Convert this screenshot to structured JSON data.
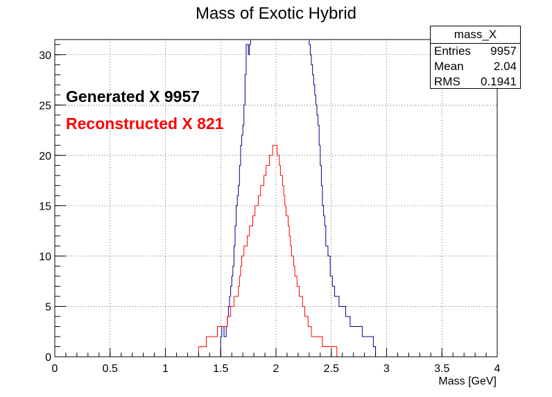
{
  "chart_data": {
    "type": "histogram",
    "title": "Mass of Exotic Hybrid",
    "xlabel": "Mass [GeV]",
    "ylabel": "",
    "xlim": [
      0,
      4
    ],
    "ylim": [
      0,
      31.5
    ],
    "xticks": [
      "0",
      "0.5",
      "1",
      "1.5",
      "2",
      "2.5",
      "3",
      "3.5",
      "4"
    ],
    "yticks": [
      "0",
      "5",
      "10",
      "15",
      "20",
      "25",
      "30"
    ],
    "grid": true,
    "bin_width": 0.01,
    "series": [
      {
        "name": "mass_X",
        "color": "#000080",
        "x": [
          1.5,
          1.52,
          1.54,
          1.56,
          1.58,
          1.6,
          1.62,
          1.64,
          1.66,
          1.68,
          1.7,
          1.72,
          1.74,
          1.76,
          1.78,
          1.8,
          2.2,
          2.25,
          2.3,
          2.32,
          2.34,
          2.36,
          2.38,
          2.4,
          2.42,
          2.44,
          2.46,
          2.48,
          2.5,
          2.52,
          2.55,
          2.6,
          2.65,
          2.7,
          2.75,
          2.8,
          2.85,
          2.9
        ],
        "values": [
          2,
          3,
          2,
          4,
          5,
          8,
          10,
          14,
          16,
          20,
          22,
          26,
          32,
          30,
          32,
          32,
          32,
          32,
          32,
          30,
          28,
          26,
          24,
          20,
          16,
          13,
          11,
          10,
          8,
          7,
          6,
          5,
          4,
          3,
          3,
          2,
          2,
          1
        ]
      },
      {
        "name": "Reconstructed",
        "color": "#ff0000",
        "x": [
          1.3,
          1.35,
          1.4,
          1.45,
          1.5,
          1.55,
          1.6,
          1.65,
          1.7,
          1.75,
          1.8,
          1.85,
          1.9,
          1.95,
          2.0,
          2.05,
          2.1,
          2.15,
          2.2,
          2.25,
          2.3,
          2.35,
          2.4,
          2.45,
          2.5,
          2.55
        ],
        "values": [
          1,
          1,
          2,
          2,
          3,
          3,
          5,
          6,
          10,
          12,
          14,
          16,
          18,
          20,
          21,
          18,
          14,
          10,
          7,
          5,
          3,
          2,
          2,
          1,
          1,
          1
        ]
      }
    ]
  },
  "stats_box": {
    "name": "mass_X",
    "entries_label": "Entries",
    "entries": "9957",
    "mean_label": "Mean",
    "mean": "2.04",
    "rms_label": "RMS",
    "rms": "0.1941"
  },
  "legend": {
    "generated": "Generated X 9957",
    "reconstructed": "Reconstructed X 821"
  }
}
